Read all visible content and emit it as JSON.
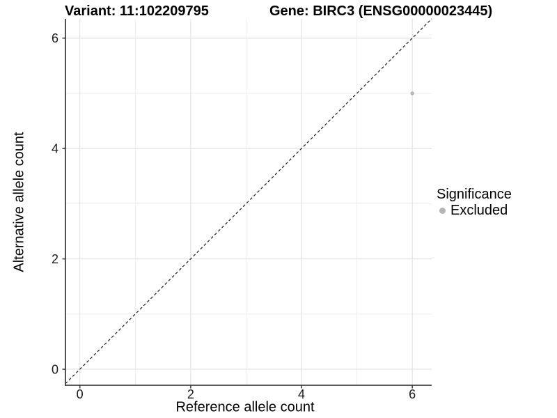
{
  "title": {
    "variant_label": "Variant: 11:102209795",
    "gene_label": "Gene: BIRC3 (ENSG00000023445)"
  },
  "chart_data": {
    "type": "scatter",
    "xlabel": "Reference allele count",
    "ylabel": "Alternative allele count",
    "xlim": [
      -0.26,
      6.35
    ],
    "ylim": [
      -0.29,
      6.35
    ],
    "x_major_ticks": [
      0,
      2,
      4,
      6
    ],
    "x_minor_ticks": [
      1,
      3,
      5
    ],
    "y_major_ticks": [
      0,
      2,
      4,
      6
    ],
    "y_minor_ticks": [
      1,
      3,
      5
    ],
    "grid": true,
    "legend_position": "right",
    "points": [
      {
        "x": 6,
        "y": 5,
        "series": "Excluded"
      }
    ],
    "reference_line": {
      "equation": "y = x",
      "style": "dashed"
    }
  },
  "legend": {
    "title": "Significance",
    "items": [
      {
        "label": "Excluded",
        "color": "#b5b5b5"
      }
    ]
  },
  "colors": {
    "background": "#ffffff",
    "grid_major": "#e3e3e3",
    "grid_minor": "#eeeeee",
    "axis_line": "#404040",
    "tick_text": "#1a1a1a",
    "dashed_line": "#1a1a1a",
    "point": "#b5b5b5"
  }
}
